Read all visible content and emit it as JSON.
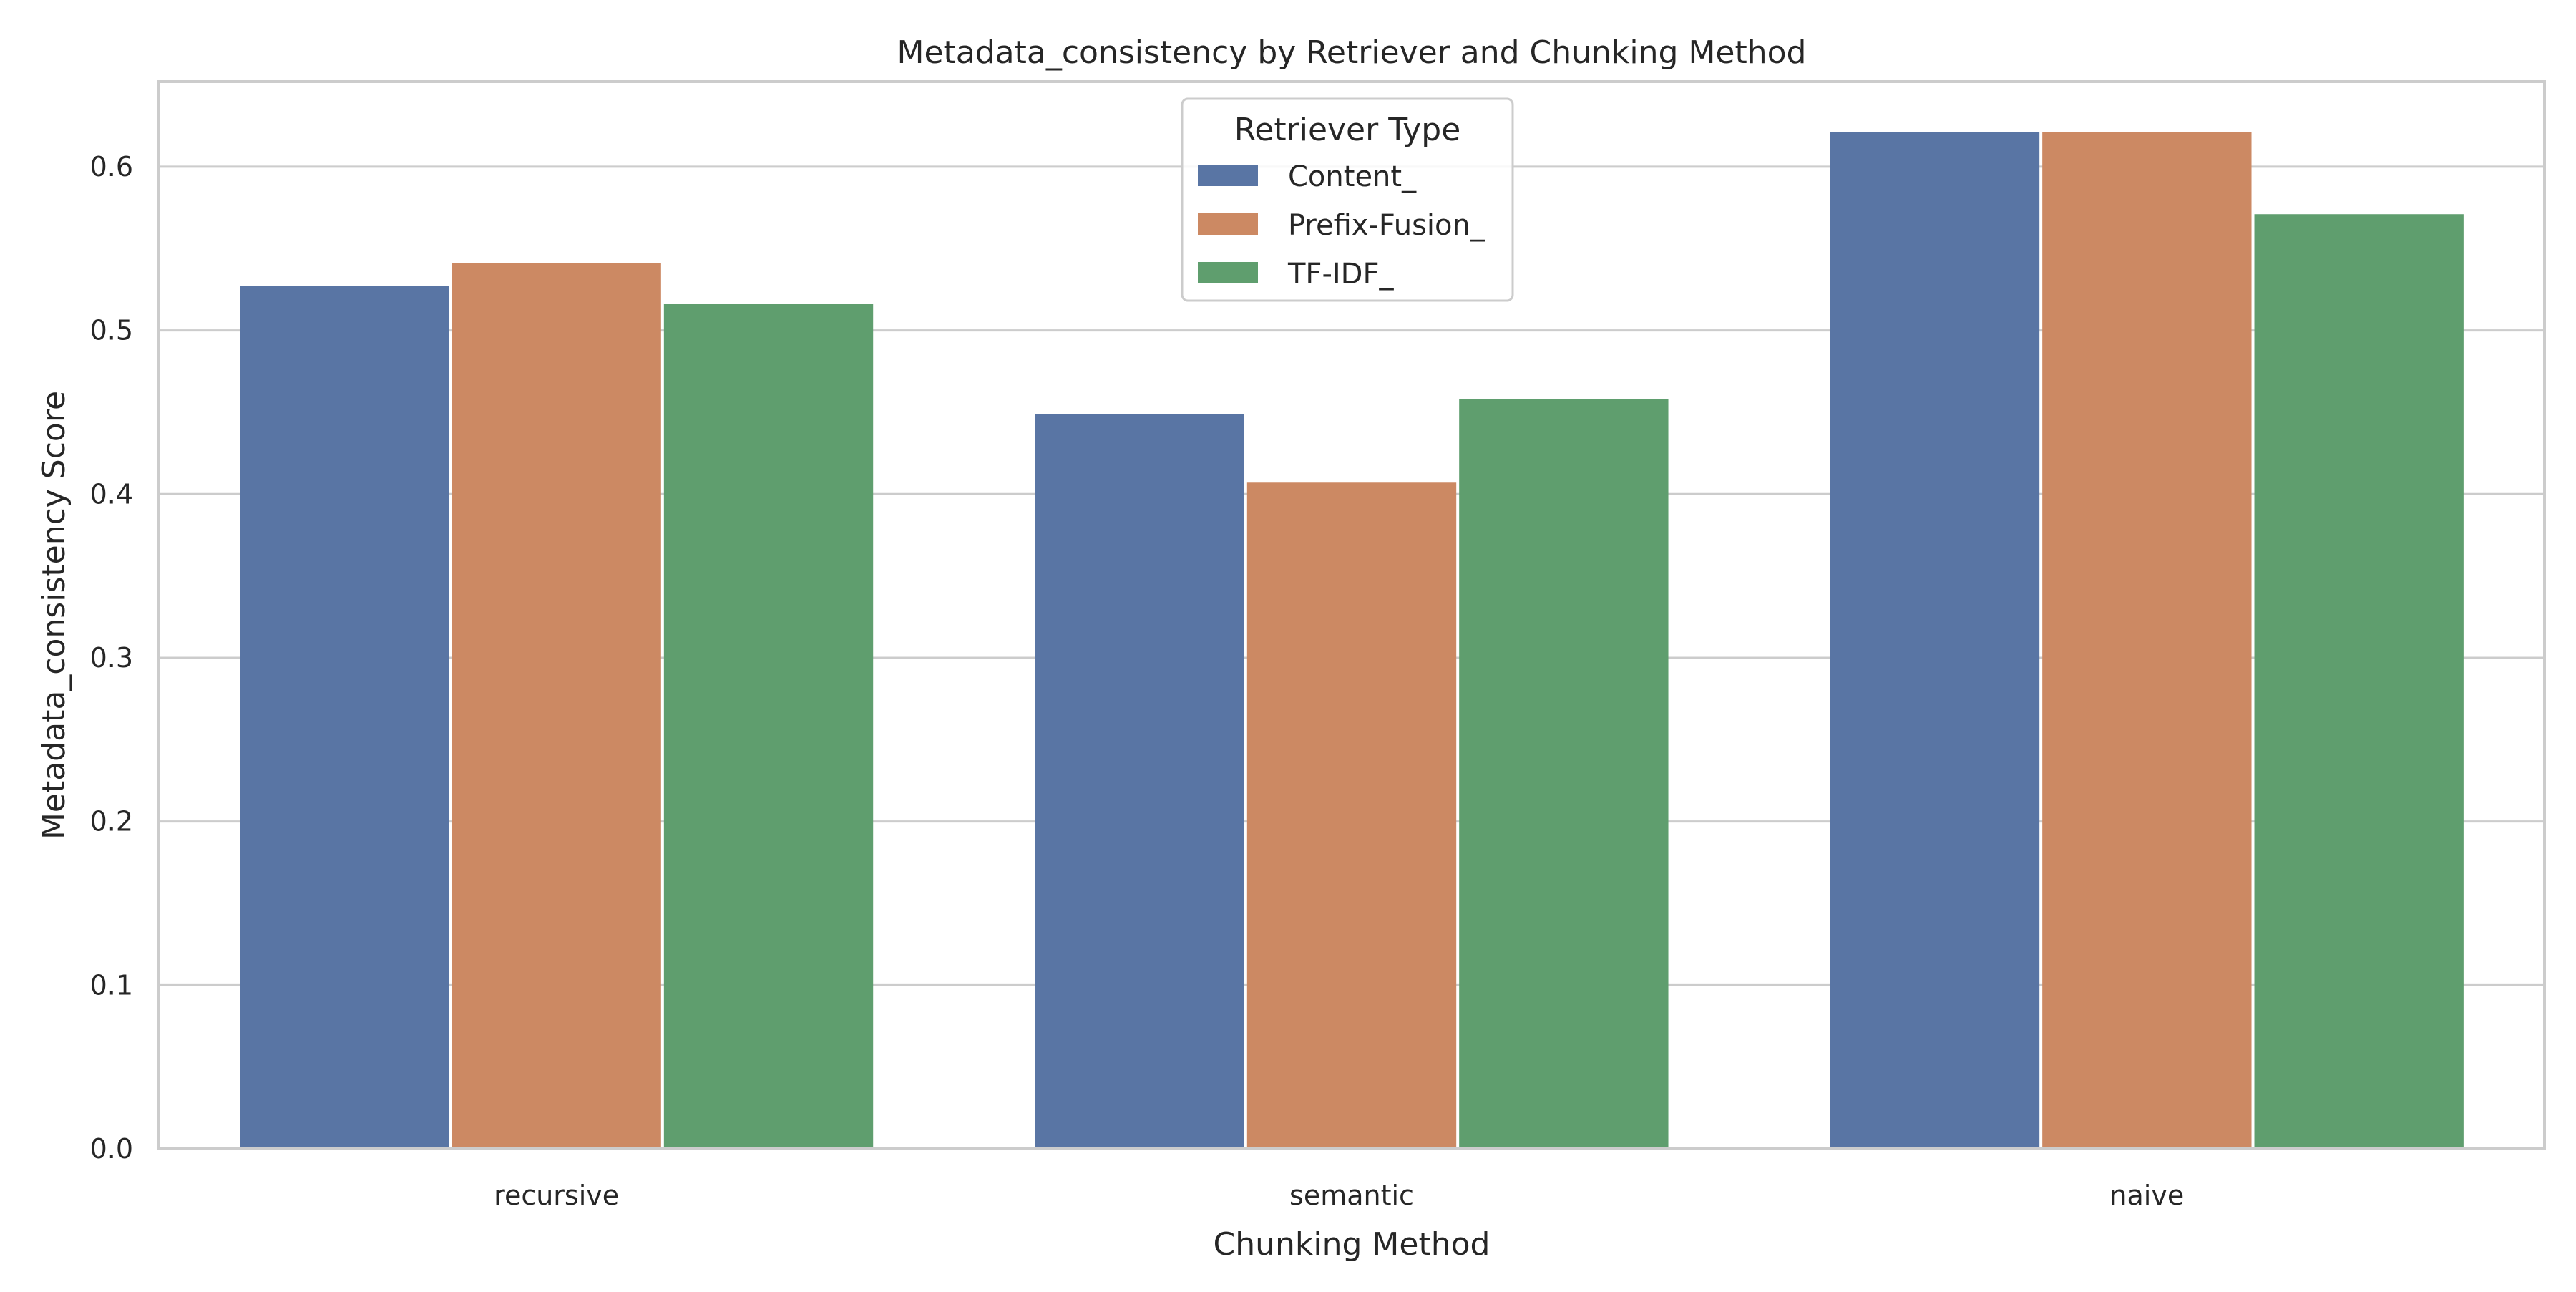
{
  "chart_data": {
    "type": "bar",
    "title": "Metadata_consistency by Retriever and Chunking Method",
    "xlabel": "Chunking Method",
    "ylabel": "Metadata_consistency Score",
    "categories": [
      "recursive",
      "semantic",
      "naive"
    ],
    "series": [
      {
        "name": "Content_",
        "color": "#5975a4",
        "values": [
          0.527,
          0.449,
          0.621
        ]
      },
      {
        "name": "Prefix-Fusion_",
        "color": "#cc8963",
        "values": [
          0.541,
          0.407,
          0.621
        ]
      },
      {
        "name": "TF-IDF_",
        "color": "#5f9e6e",
        "values": [
          0.516,
          0.458,
          0.571
        ]
      }
    ],
    "ylim": [
      0,
      0.652
    ],
    "yticks": [
      "0.0",
      "0.1",
      "0.2",
      "0.3",
      "0.4",
      "0.5",
      "0.6"
    ],
    "grid": "horizontal",
    "legend": {
      "title": "Retriever Type",
      "placement": "top-center"
    }
  }
}
